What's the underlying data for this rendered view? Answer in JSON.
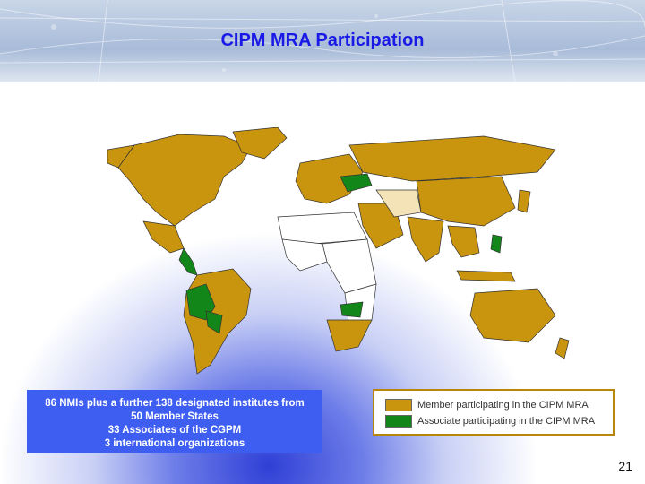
{
  "slide": {
    "title": "CIPM MRA Participation",
    "page_number": "21"
  },
  "stats": {
    "line1": "86 NMIs plus a further 138 designated institutes from",
    "line2": "50 Member States",
    "line3": "33 Associates of the CGPM",
    "line4": "3 international organizations"
  },
  "legend": {
    "member_label": "Member participating in the CIPM MRA",
    "associate_label": "Associate participating in the CIPM MRA",
    "member_color": "#c9940e",
    "associate_color": "#13861a"
  },
  "map": {
    "other_color": "#ffffff",
    "non_participating_color": "#f5e3b8",
    "border_color": "#333333"
  }
}
